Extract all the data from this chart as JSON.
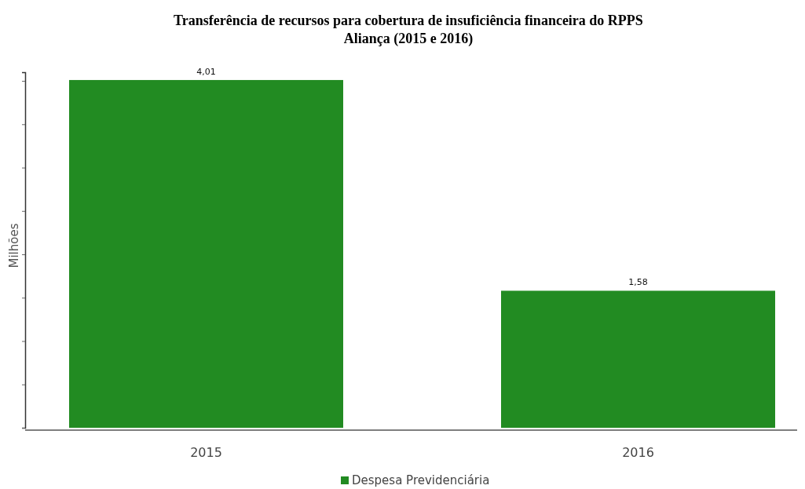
{
  "chart_data": {
    "type": "bar",
    "title": "Transferência de recursos para cobertura de insuficiência financeira do RPPS\nAliança (2015 e 2016)",
    "ylabel": "Milhões",
    "categories": [
      "2015",
      "2016"
    ],
    "series": [
      {
        "name": "Despesa Previdenciária",
        "color": "#228b22",
        "values": [
          4.01,
          1.58
        ],
        "value_labels": [
          "4,01",
          "1,58"
        ]
      }
    ],
    "ylim": [
      0,
      4.1
    ],
    "yticks": [
      {
        "value": 0,
        "label": null
      },
      {
        "value": 0.5,
        "label": null
      },
      {
        "value": 1,
        "label": null
      },
      {
        "value": 1.5,
        "label": null
      },
      {
        "value": 2,
        "label": null
      },
      {
        "value": 2.5,
        "label": null
      },
      {
        "value": 3,
        "label": null
      },
      {
        "value": 3.5,
        "label": null
      },
      {
        "value": 4,
        "label": null
      }
    ],
    "tick_labels": "x",
    "grid": false,
    "legend": "bottom"
  }
}
